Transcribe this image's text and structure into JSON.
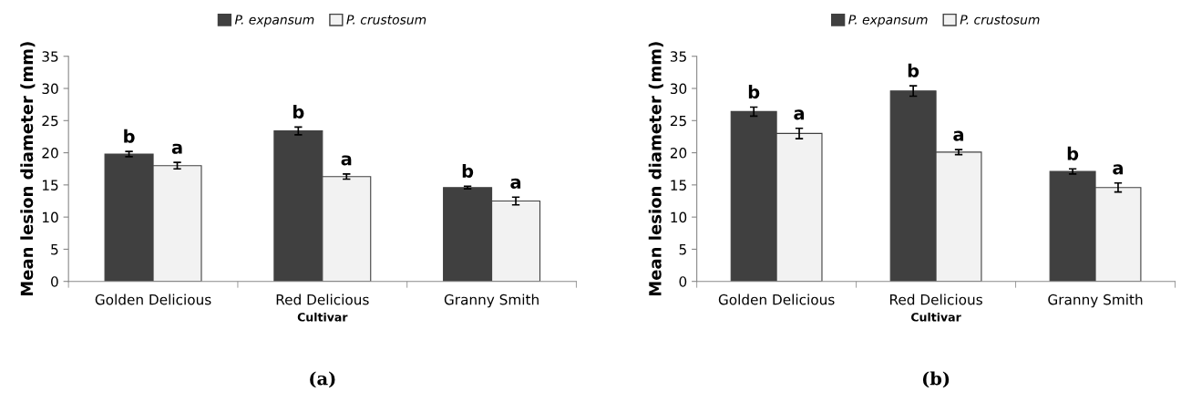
{
  "chart_data": [
    {
      "type": "bar",
      "categories": [
        "Golden Delicious",
        "Red Delicious",
        "Granny Smith"
      ],
      "xlabel": "Cultivar",
      "ylabel": "Mean lesion diameter (mm)",
      "ylim": [
        0,
        35
      ],
      "yticks": [
        0,
        5,
        10,
        15,
        20,
        25,
        30,
        35
      ],
      "grid": false,
      "legend": "top",
      "annotations": [
        "(a)"
      ],
      "series": [
        {
          "name": "P. expansum",
          "color": "#404040",
          "values": [
            19.8,
            23.4,
            14.6
          ],
          "errors": [
            0.4,
            0.6,
            0.2
          ],
          "value_labels": [
            "b",
            "b",
            "b"
          ]
        },
        {
          "name": "P. crustosum",
          "color": "#f2f2f2",
          "values": [
            18.0,
            16.3,
            12.5
          ],
          "errors": [
            0.5,
            0.4,
            0.6
          ],
          "value_labels": [
            "a",
            "a",
            "a"
          ]
        }
      ]
    },
    {
      "type": "bar",
      "categories": [
        "Golden Delicious",
        "Red Delicious",
        "Granny Smith"
      ],
      "xlabel": "Cultivar",
      "ylabel": "Mean lesion diameter (mm)",
      "ylim": [
        0,
        35
      ],
      "yticks": [
        0,
        5,
        10,
        15,
        20,
        25,
        30,
        35
      ],
      "grid": false,
      "legend": "top",
      "annotations": [
        "(b)"
      ],
      "series": [
        {
          "name": "P. expansum",
          "color": "#404040",
          "values": [
            26.4,
            29.6,
            17.1
          ],
          "errors": [
            0.7,
            0.8,
            0.4
          ],
          "value_labels": [
            "b",
            "b",
            "b"
          ]
        },
        {
          "name": "P. crustosum",
          "color": "#f2f2f2",
          "values": [
            23.0,
            20.1,
            14.6
          ],
          "errors": [
            0.8,
            0.4,
            0.7
          ],
          "value_labels": [
            "a",
            "a",
            "a"
          ]
        }
      ]
    }
  ]
}
